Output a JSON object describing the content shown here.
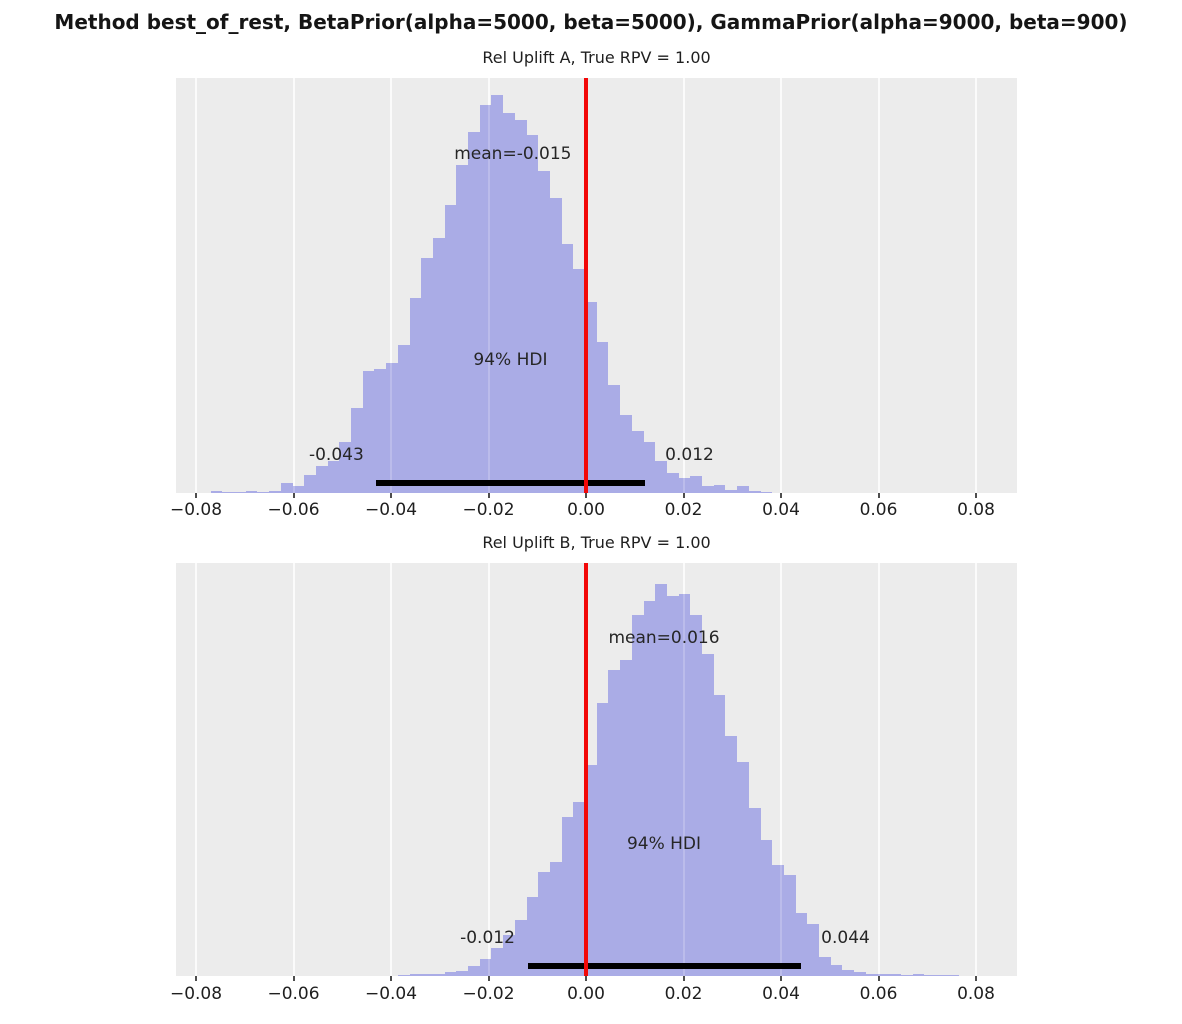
{
  "title": "Method best_of_rest, BetaPrior(alpha=5000, beta=5000), GammaPrior(alpha=9000, beta=900)",
  "colors": {
    "figure_background": "#ffffff",
    "panel_background": "#ececec",
    "bar": "#aaace6",
    "gridline": "#fbfbfb",
    "reference_line": "#f20808",
    "hdi_line": "#000000",
    "text": "#262626"
  },
  "x_axis": {
    "tick_values": [
      -0.08,
      -0.06,
      -0.04,
      -0.02,
      0.0,
      0.02,
      0.04,
      0.06,
      0.08
    ],
    "tick_labels": [
      "−0.08",
      "−0.06",
      "−0.04",
      "−0.02",
      "0.00",
      "0.02",
      "0.04",
      "0.06",
      "0.08"
    ]
  },
  "chart_data": [
    {
      "type": "bar",
      "title": "Rel Uplift A, True RPV = 1.00",
      "xlim": [
        -0.0841,
        0.0884
      ],
      "grid": "vertical-white-on-gray",
      "reference_line_x": 0.0,
      "mean": {
        "label": "mean=-0.015",
        "value": -0.015
      },
      "hdi": {
        "label": "94% HDI",
        "lo": -0.043,
        "hi": 0.012,
        "lo_label": "-0.043",
        "hi_label": "0.012",
        "probability": 0.94
      },
      "bins": {
        "start": -0.077,
        "width": 0.0024,
        "heights_pct": [
          0.4,
          0.2,
          0.3,
          0.5,
          0.3,
          0.6,
          2.4,
          1.8,
          4.4,
          6.4,
          7.6,
          12.4,
          20.5,
          29.3,
          30.0,
          31.3,
          35.7,
          47.0,
          56.6,
          61.4,
          69.5,
          79.1,
          87.0,
          93.5,
          96.0,
          91.5,
          90.0,
          86.3,
          77.5,
          71.0,
          60.0,
          54.0,
          46.0,
          36.5,
          26.1,
          18.9,
          14.9,
          12.4,
          7.6,
          4.8,
          3.6,
          4.0,
          1.6,
          2.0,
          0.8,
          1.6,
          0.4,
          0.3
        ]
      }
    },
    {
      "type": "bar",
      "title": "Rel Uplift B, True RPV = 1.00",
      "xlim": [
        -0.0841,
        0.0884
      ],
      "grid": "vertical-white-on-gray",
      "reference_line_x": 0.0,
      "mean": {
        "label": "mean=0.016",
        "value": 0.016
      },
      "hdi": {
        "label": "94% HDI",
        "lo": -0.012,
        "hi": 0.044,
        "lo_label": "-0.012",
        "hi_label": "0.044",
        "probability": 0.94
      },
      "bins": {
        "start": -0.0386,
        "width": 0.0024,
        "heights_pct": [
          0.3,
          0.4,
          0.5,
          0.6,
          1.0,
          1.3,
          2.4,
          4.0,
          6.7,
          9.9,
          13.5,
          19.2,
          25.2,
          27.7,
          38.5,
          42.2,
          51.0,
          66.0,
          74.0,
          76.4,
          87.3,
          90.9,
          95.0,
          92.1,
          92.5,
          87.3,
          78.0,
          68.0,
          58.0,
          51.9,
          40.6,
          32.9,
          26.9,
          24.4,
          15.2,
          12.7,
          4.7,
          2.7,
          1.5,
          0.9,
          0.6,
          0.5,
          0.4,
          0.3,
          0.5,
          0.3,
          0.2,
          0.2,
          0.1,
          0.1
        ]
      }
    }
  ]
}
